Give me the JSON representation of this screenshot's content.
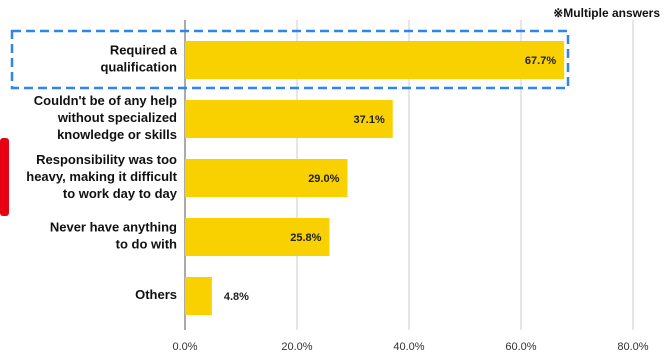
{
  "chart_data": {
    "type": "hbar",
    "annotation": "※Multiple answers",
    "categories": [
      "Required a\nqualification",
      "Couldn't be of any help\nwithout specialized\nknowledge or skills",
      "Responsibility was too\nheavy, making it difficult\nto work day to day",
      "Never have anything\nto do with",
      "Others"
    ],
    "values": [
      67.7,
      37.1,
      29.0,
      25.8,
      4.8
    ],
    "value_labels": [
      "67.7%",
      "37.1%",
      "29.0%",
      "25.8%",
      "4.8%"
    ],
    "color": "#f9d100",
    "xlim": [
      0,
      80
    ],
    "xticks": [
      {
        "value": 0,
        "label": "0.0%"
      },
      {
        "value": 20,
        "label": "20.0%"
      },
      {
        "value": 40,
        "label": "40.0%"
      },
      {
        "value": 60,
        "label": "60.0%"
      },
      {
        "value": 80,
        "label": "80.0%"
      }
    ],
    "grid": true
  }
}
